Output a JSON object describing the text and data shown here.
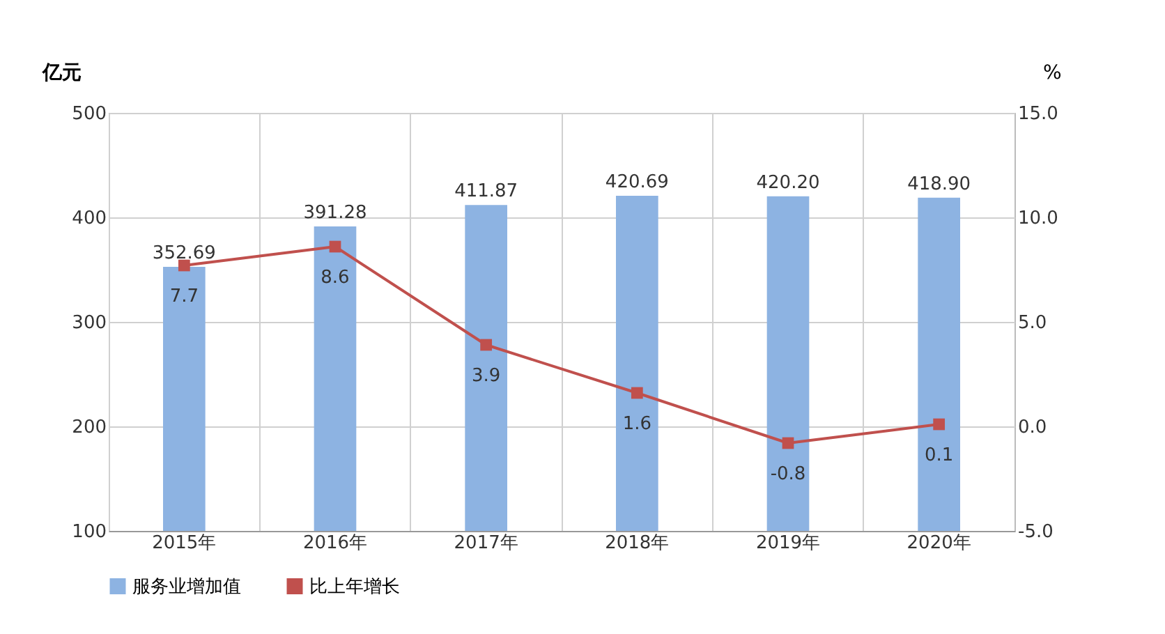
{
  "chart_data": {
    "type": "bar",
    "ylabel": "亿元",
    "y2label": "%",
    "categories": [
      "2015年",
      "2016年",
      "2017年",
      "2018年",
      "2019年",
      "2020年"
    ],
    "series": [
      {
        "name": "服务业增加值",
        "color": "#8db3e2",
        "values": [
          352.69,
          391.28,
          411.87,
          420.69,
          420.2,
          418.9
        ],
        "value_labels": [
          "352.69",
          "391.28",
          "411.87",
          "420.69",
          "420.20",
          "418.90"
        ]
      },
      {
        "name": "比上年增长",
        "type": "line",
        "axis": "y2",
        "color": "#c0504d",
        "marker": "square",
        "values": [
          7.7,
          8.6,
          3.9,
          1.6,
          -0.8,
          0.1
        ],
        "value_labels": [
          "7.7",
          "8.6",
          "3.9",
          "1.6",
          "-0.8",
          "0.1"
        ]
      }
    ],
    "ylim": [
      100,
      500
    ],
    "yticks": [
      100,
      200,
      300,
      400,
      500
    ],
    "y2lim": [
      -5,
      15
    ],
    "y2ticks": [
      {
        "value": -5,
        "label": "-5.0"
      },
      {
        "value": 0,
        "label": "0.0"
      },
      {
        "value": 5,
        "label": "5.0"
      },
      {
        "value": 10,
        "label": "10.0"
      },
      {
        "value": 15,
        "label": "15.0"
      }
    ],
    "grid": true,
    "legend": "bottom"
  }
}
